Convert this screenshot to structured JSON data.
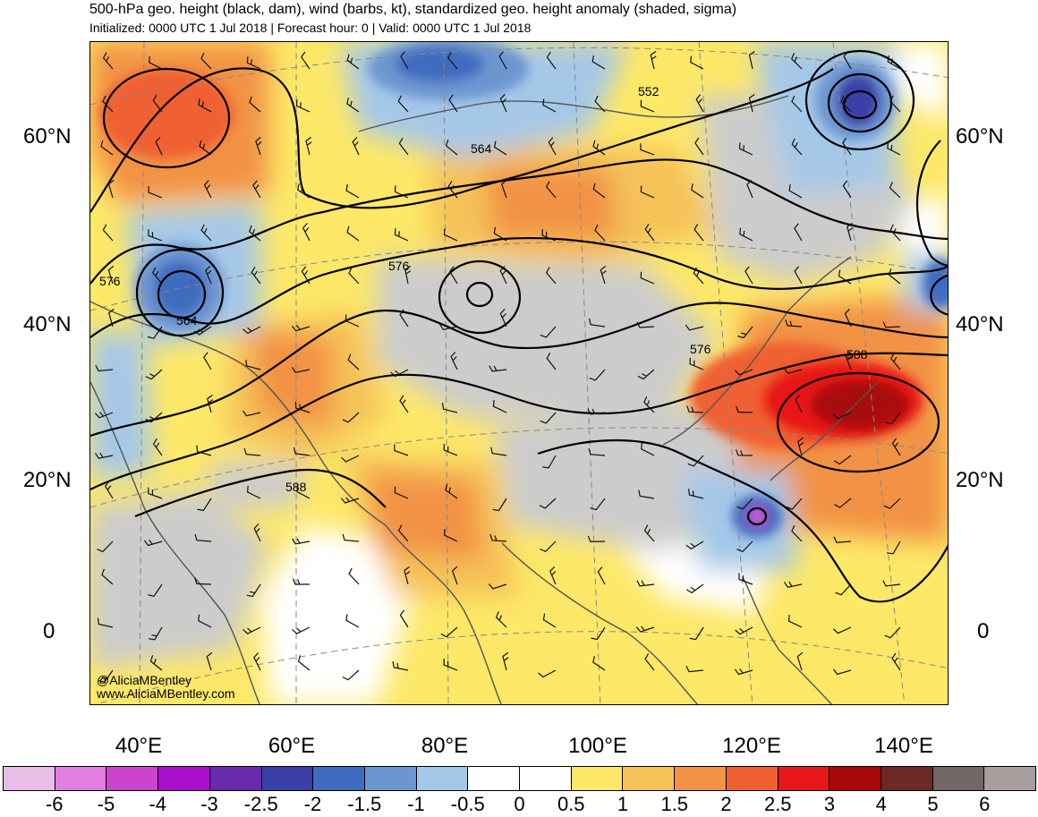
{
  "title": "500-hPa geo. height (black, dam), wind (barbs, kt), standardized geo. height anomaly (shaded, sigma)",
  "subtitle": "Initialized: 0000 UTC 1 Jul 2018 | Forecast hour: 0 | Valid: 0000 UTC 1 Jul 2018",
  "credits": [
    "@AliciaMBentley",
    "www.AliciaMBentley.com"
  ],
  "latitude_labels": [
    "60°N",
    "40°N",
    "20°N",
    "0"
  ],
  "longitude_labels": [
    "40°E",
    "60°E",
    "80°E",
    "100°E",
    "120°E",
    "140°E"
  ],
  "contour_labels": [
    "552",
    "564",
    "576",
    "564",
    "576",
    "576",
    "588",
    "588"
  ],
  "colorbar": {
    "colors": [
      "#e8bde8",
      "#e07fe0",
      "#cc44cc",
      "#aa10cc",
      "#6a2ab0",
      "#3b3fa8",
      "#3f6cc0",
      "#6d96d0",
      "#a5c8e8",
      "#ffffff",
      "#ffffff",
      "#fde868",
      "#f5c258",
      "#f29244",
      "#ef6030",
      "#e81818",
      "#a80808",
      "#6e2828",
      "#726666",
      "#a89e9e"
    ],
    "ticks": [
      "-6",
      "-5",
      "-4",
      "-3",
      "-2.5",
      "-2",
      "-1.5",
      "-1",
      "-0.5",
      "0",
      "0.5",
      "1",
      "1.5",
      "2",
      "2.5",
      "3",
      "4",
      "5",
      "6"
    ]
  },
  "legend_colors": {
    "gray_near_zero": "#cccccc",
    "coastline": "#555555",
    "contour": "#000000"
  }
}
